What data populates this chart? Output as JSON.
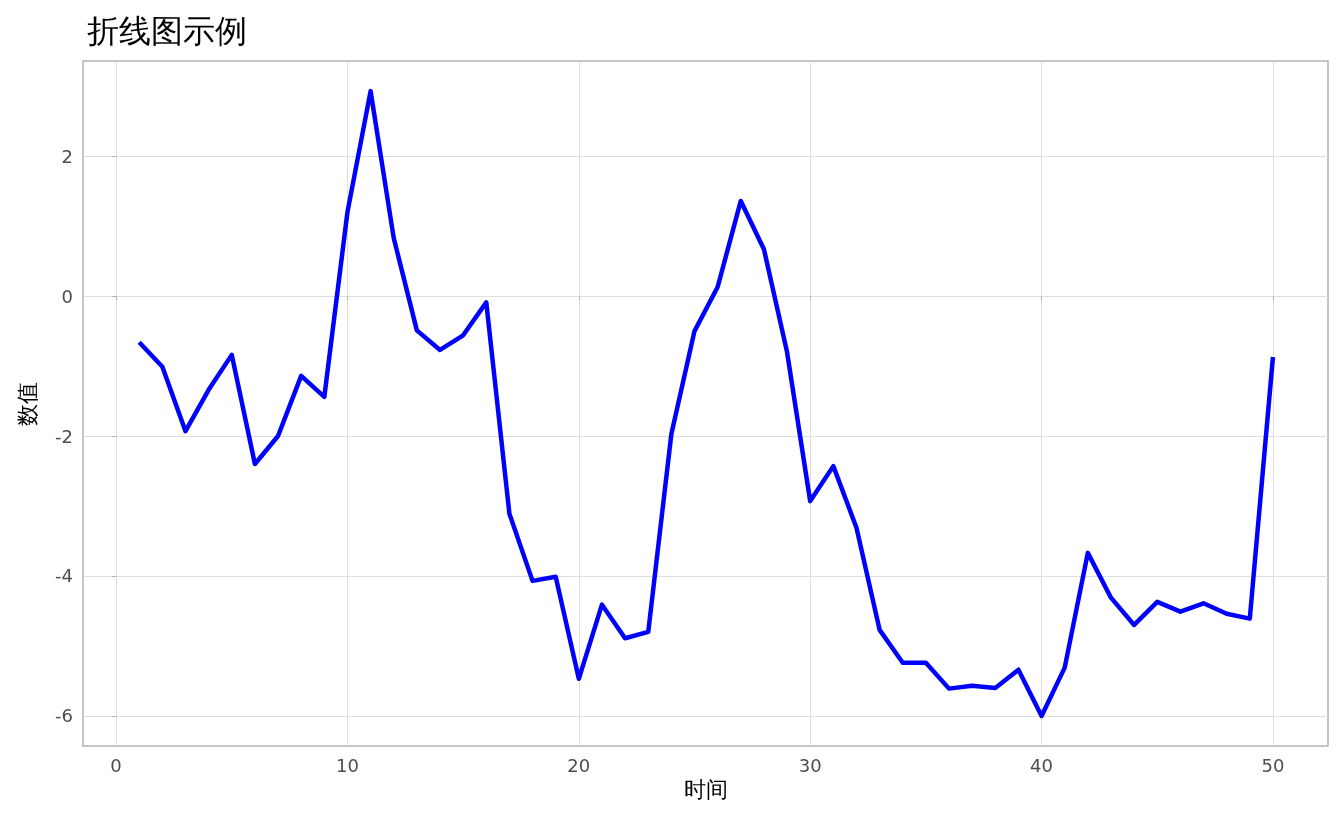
{
  "chart_data": {
    "type": "line",
    "title": "折线图示例",
    "xlabel": "时间",
    "ylabel": "数值",
    "x": [
      1,
      2,
      3,
      4,
      5,
      6,
      7,
      8,
      9,
      10,
      11,
      12,
      13,
      14,
      15,
      16,
      17,
      18,
      19,
      20,
      21,
      22,
      23,
      24,
      25,
      26,
      27,
      28,
      29,
      30,
      31,
      32,
      33,
      34,
      35,
      36,
      37,
      38,
      39,
      40,
      41,
      42,
      43,
      44,
      45,
      46,
      47,
      48,
      49,
      50
    ],
    "series": [
      {
        "color": "#0000ff",
        "values": [
          -0.66,
          -1.01,
          -1.93,
          -1.34,
          -0.84,
          -2.4,
          -2.0,
          -1.14,
          -1.44,
          1.2,
          2.93,
          0.83,
          -0.49,
          -0.77,
          -0.56,
          -0.09,
          -3.11,
          -4.07,
          -4.01,
          -5.47,
          -4.41,
          -4.89,
          -4.8,
          -1.97,
          -0.5,
          0.13,
          1.36,
          0.67,
          -0.8,
          -2.93,
          -2.43,
          -3.31,
          -4.77,
          -5.24,
          -5.24,
          -5.61,
          -5.57,
          -5.6,
          -5.34,
          -6.0,
          -5.31,
          -3.67,
          -4.31,
          -4.7,
          -4.37,
          -4.51,
          -4.39,
          -4.54,
          -4.61,
          -0.87
        ]
      }
    ],
    "xlim": [
      -1.43,
      52.38
    ],
    "ylim": [
      -6.43,
      3.36
    ],
    "xticks": [
      0,
      10,
      20,
      30,
      40,
      50
    ],
    "yticks": [
      -6,
      -4,
      -2,
      0,
      2
    ],
    "grid": true,
    "marker": "none",
    "line_style": "solid"
  }
}
